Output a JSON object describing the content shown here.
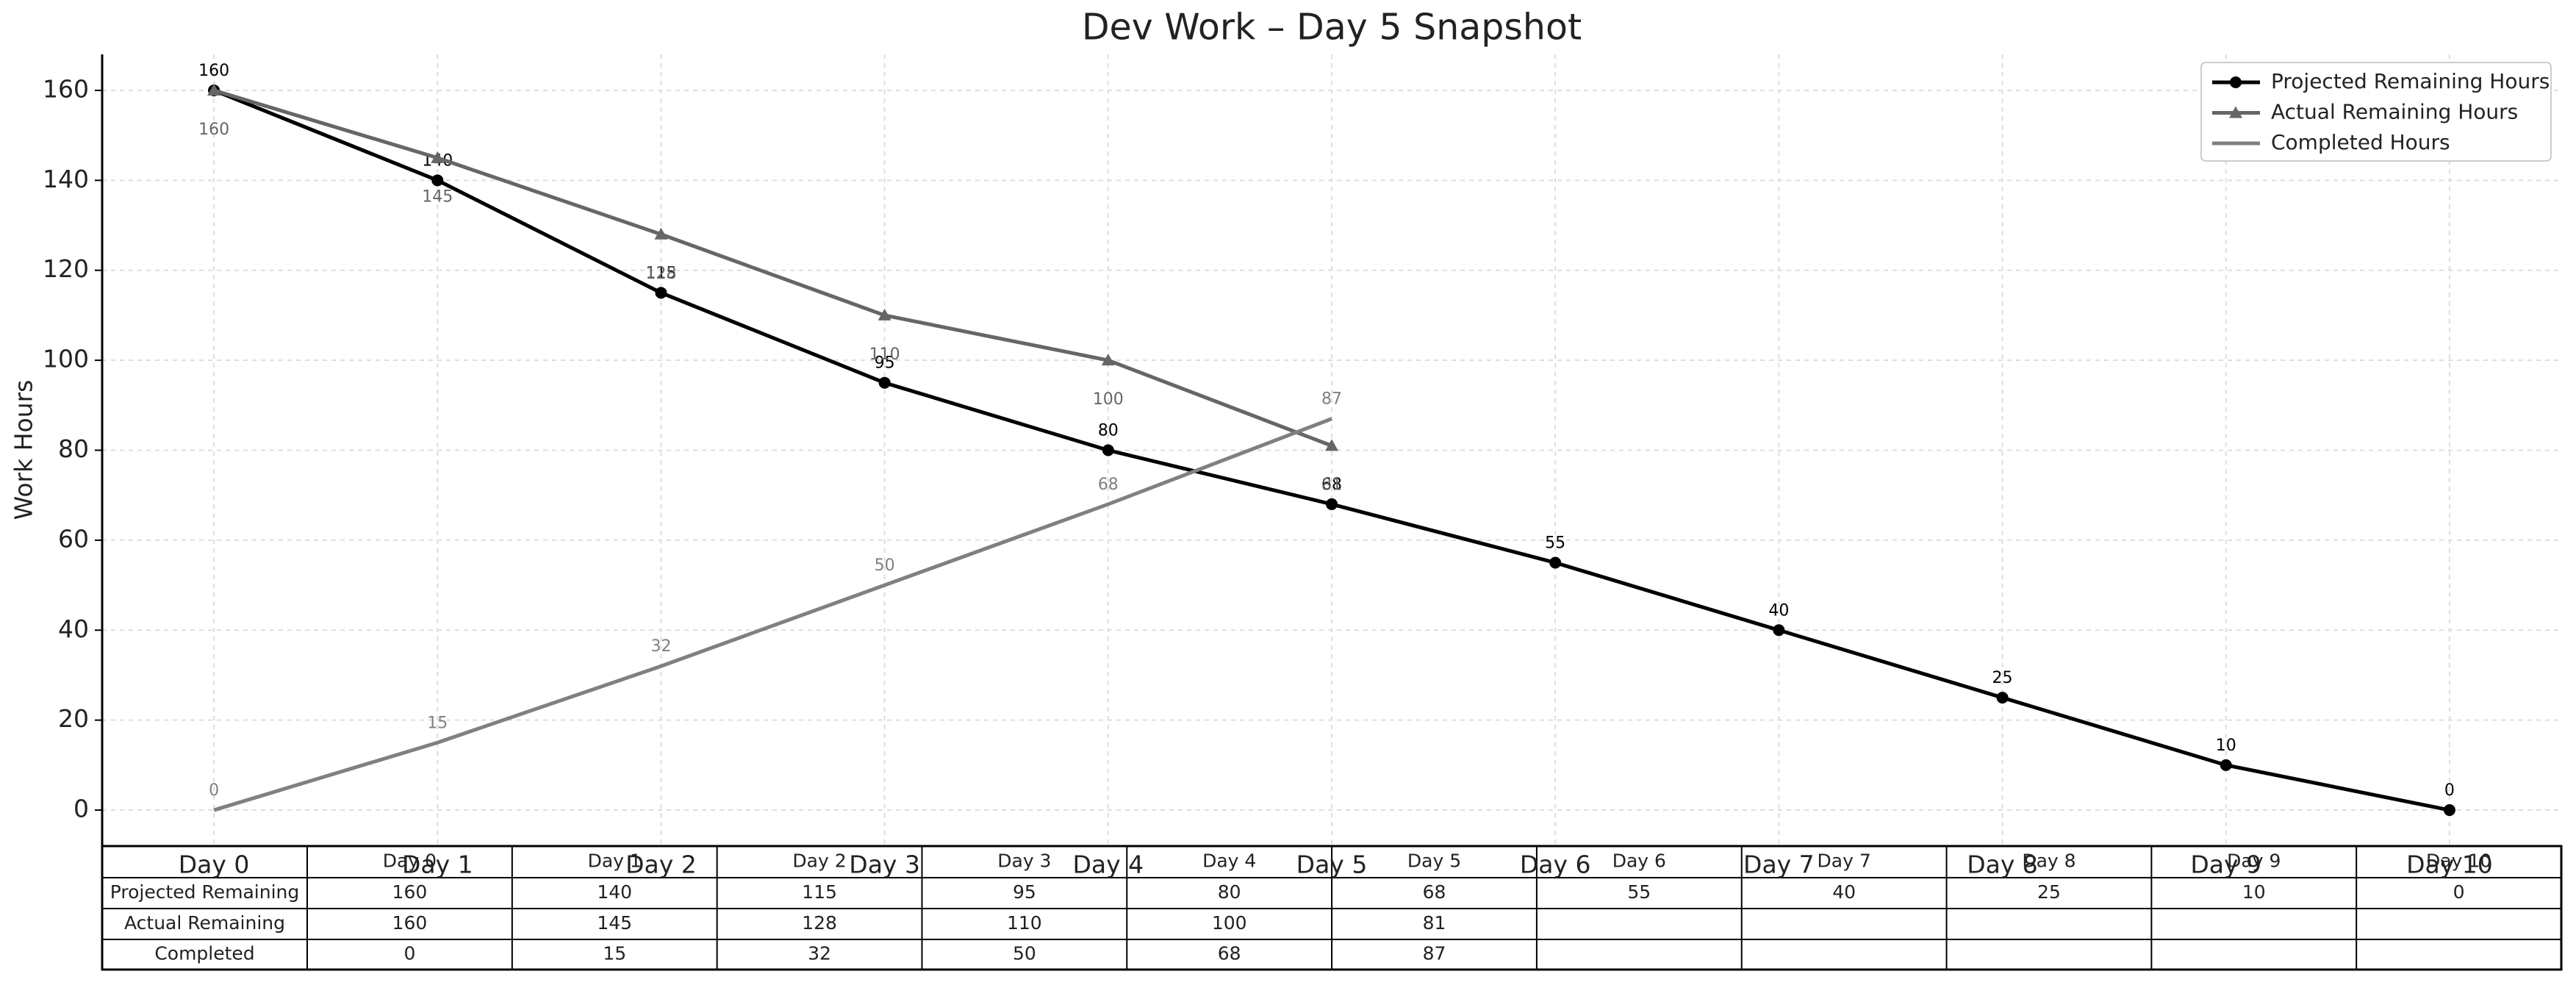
{
  "chart_data": {
    "type": "line",
    "title": "Dev Work – Day 5 Snapshot",
    "y_label": "Work Hours",
    "categories": [
      "Day 0",
      "Day 1",
      "Day 2",
      "Day 3",
      "Day 4",
      "Day 5",
      "Day 6",
      "Day 7",
      "Day 8",
      "Day 9",
      "Day 10"
    ],
    "series": [
      {
        "name": "Projected Remaining Hours",
        "color": "#000000",
        "marker": "circle",
        "label_side": "above",
        "values": [
          160,
          140,
          115,
          95,
          80,
          68,
          55,
          40,
          25,
          10,
          0
        ]
      },
      {
        "name": "Actual Remaining Hours",
        "color": "#666666",
        "marker": "triangle",
        "label_side": "below",
        "values": [
          160,
          145,
          128,
          110,
          100,
          81,
          null,
          null,
          null,
          null,
          null
        ]
      },
      {
        "name": "Completed Hours",
        "color": "#808080",
        "marker": "none",
        "label_side": "above",
        "values": [
          0,
          15,
          32,
          50,
          68,
          87,
          null,
          null,
          null,
          null,
          null
        ]
      }
    ],
    "table_row_labels": [
      "Projected Remaining",
      "Actual Remaining",
      "Completed"
    ],
    "ylim": [
      -8,
      168
    ],
    "yticks": [
      0,
      20,
      40,
      60,
      80,
      100,
      120,
      140,
      160
    ],
    "grid": true,
    "legend": "upper right"
  }
}
